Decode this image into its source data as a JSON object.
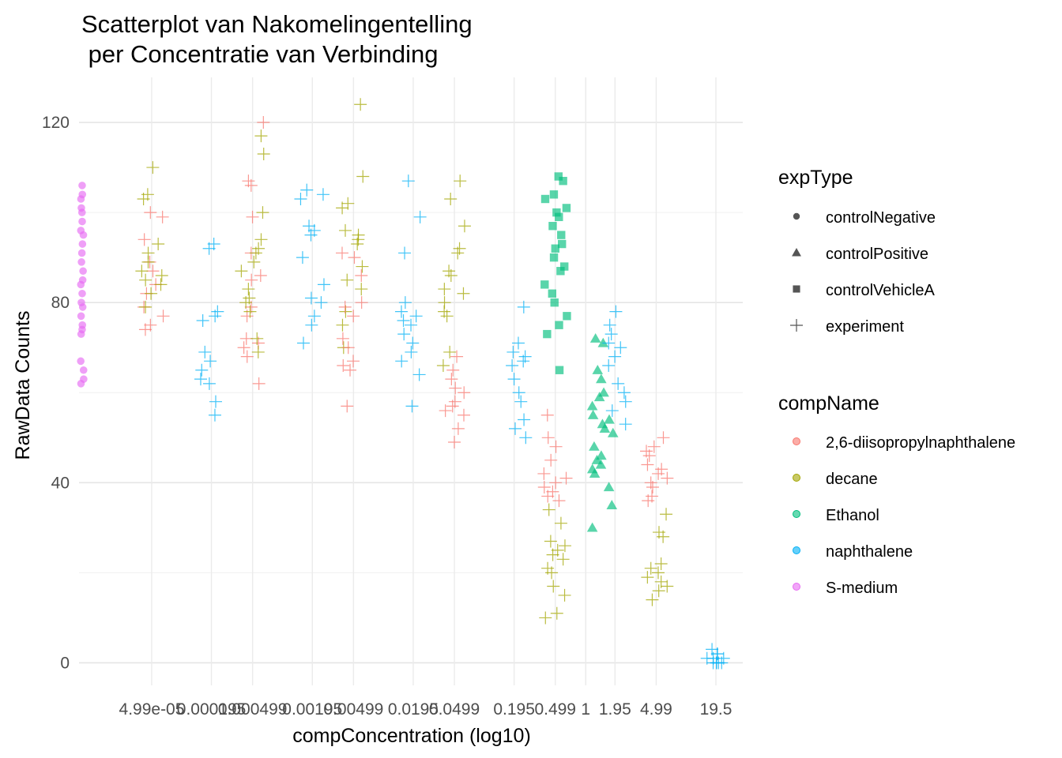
{
  "chart_data": {
    "type": "scatter",
    "title": "Scatterplot van Nakomelingentelling\n per Concentratie van Verbinding",
    "xlabel": "compConcentration (log10)",
    "ylabel": "RawData Counts",
    "x_scale": "log10",
    "xlim": [
      9.5e-06,
      36
    ],
    "ylim": [
      -5,
      130
    ],
    "y_ticks": [
      0,
      40,
      80,
      120
    ],
    "x_tick_labels": [
      {
        "value": 4.99e-05,
        "label": "4.99e-05"
      },
      {
        "value": 0.000195,
        "label": "0.000195"
      },
      {
        "value": 0.000499,
        "label": "0.000499"
      },
      {
        "value": 0.00195,
        "label": "0.00195"
      },
      {
        "value": 0.00499,
        "label": "0.00499"
      },
      {
        "value": 0.0195,
        "label": "0.0195"
      },
      {
        "value": 0.0499,
        "label": "0.0499"
      },
      {
        "value": 0.195,
        "label": "0.195"
      },
      {
        "value": 0.499,
        "label": "0.499"
      },
      {
        "value": 1,
        "label": "1"
      },
      {
        "value": 1.95,
        "label": "1.95"
      },
      {
        "value": 4.99,
        "label": "4.99"
      },
      {
        "value": 19.5,
        "label": "19.5"
      }
    ],
    "grid": true,
    "legend_placement": "right",
    "legends": [
      {
        "title": "expType",
        "entries": [
          {
            "label": "controlNegative",
            "shape": "circle"
          },
          {
            "label": "controlPositive",
            "shape": "triangle"
          },
          {
            "label": "controlVehicleA",
            "shape": "square"
          },
          {
            "label": "experiment",
            "shape": "plus"
          }
        ]
      },
      {
        "title": "compName",
        "entries": [
          {
            "label": "2,6-diisopropylnaphthalene",
            "color": "#F8766D"
          },
          {
            "label": "decane",
            "color": "#A3A500"
          },
          {
            "label": "Ethanol",
            "color": "#00BF7D"
          },
          {
            "label": "naphthalene",
            "color": "#00B0F6"
          },
          {
            "label": "S-medium",
            "color": "#E76BF3"
          }
        ]
      }
    ],
    "series": [
      {
        "compName": "S-medium",
        "expType": "controlNegative",
        "color": "#E76BF3",
        "shape": "circle",
        "x": 9.5e-06,
        "y": [
          106,
          104,
          103,
          101,
          100,
          98,
          96,
          95,
          93,
          91,
          89,
          87,
          85,
          84,
          82,
          80,
          79,
          77,
          75,
          74,
          73,
          67,
          65,
          63,
          62
        ]
      },
      {
        "compName": "2,6-diisopropylnaphthalene",
        "expType": "experiment",
        "color": "#F8766D",
        "shape": "plus",
        "x": 4.99e-05,
        "y": [
          100,
          99,
          94,
          89,
          87,
          84,
          82,
          79,
          77,
          75,
          74
        ]
      },
      {
        "compName": "decane",
        "expType": "experiment",
        "color": "#A3A500",
        "shape": "plus",
        "x": 4.99e-05,
        "y": [
          110,
          104,
          103,
          93,
          91,
          89,
          87,
          86,
          85,
          84,
          82,
          79
        ]
      },
      {
        "compName": "naphthalene",
        "expType": "experiment",
        "color": "#00B0F6",
        "shape": "plus",
        "x": 0.000195,
        "y": [
          93,
          92,
          78,
          77,
          76,
          69,
          67,
          65,
          63,
          62,
          58,
          55
        ]
      },
      {
        "compName": "2,6-diisopropylnaphthalene",
        "expType": "experiment",
        "color": "#F8766D",
        "shape": "plus",
        "x": 0.000499,
        "y": [
          120,
          107,
          106,
          99,
          91,
          86,
          85,
          79,
          77,
          72,
          71,
          70,
          68,
          62
        ]
      },
      {
        "compName": "decane",
        "expType": "experiment",
        "color": "#A3A500",
        "shape": "plus",
        "x": 0.000499,
        "y": [
          117,
          113,
          100,
          94,
          92,
          91,
          89,
          87,
          83,
          81,
          80,
          78,
          72,
          69
        ]
      },
      {
        "compName": "naphthalene",
        "expType": "experiment",
        "color": "#00B0F6",
        "shape": "plus",
        "x": 0.00195,
        "y": [
          105,
          104,
          103,
          97,
          96,
          95,
          90,
          84,
          81,
          80,
          77,
          75,
          71
        ]
      },
      {
        "compName": "decane",
        "expType": "experiment",
        "color": "#A3A500",
        "shape": "plus",
        "x": 0.00499,
        "y": [
          124,
          108,
          102,
          101,
          96,
          95,
          94,
          93,
          88,
          85,
          83,
          78,
          75,
          70
        ]
      },
      {
        "compName": "2,6-diisopropylnaphthalene",
        "expType": "experiment",
        "color": "#F8766D",
        "shape": "plus",
        "x": 0.00499,
        "y": [
          91,
          90,
          86,
          80,
          79,
          77,
          72,
          70,
          67,
          66,
          65,
          57
        ]
      },
      {
        "compName": "naphthalene",
        "expType": "experiment",
        "color": "#00B0F6",
        "shape": "plus",
        "x": 0.0195,
        "y": [
          107,
          99,
          91,
          80,
          78,
          77,
          76,
          75,
          73,
          71,
          69,
          67,
          64,
          57
        ]
      },
      {
        "compName": "decane",
        "expType": "experiment",
        "color": "#A3A500",
        "shape": "plus",
        "x": 0.0499,
        "y": [
          107,
          103,
          97,
          92,
          91,
          87,
          86,
          83,
          82,
          80,
          78,
          77,
          69,
          66
        ]
      },
      {
        "compName": "2,6-diisopropylnaphthalene",
        "expType": "experiment",
        "color": "#F8766D",
        "shape": "plus",
        "x": 0.0499,
        "y": [
          68,
          65,
          63,
          61,
          60,
          58,
          57,
          56,
          55,
          52,
          49
        ]
      },
      {
        "compName": "naphthalene",
        "expType": "experiment",
        "color": "#00B0F6",
        "shape": "plus",
        "x": 0.195,
        "y": [
          79,
          71,
          69,
          68,
          67,
          66,
          63,
          60,
          58,
          54,
          52,
          50
        ]
      },
      {
        "compName": "Ethanol",
        "expType": "controlVehicleA",
        "color": "#00BF7D",
        "shape": "square",
        "x": 0.499,
        "y": [
          108,
          107,
          104,
          103,
          101,
          100,
          99,
          97,
          95,
          93,
          92,
          90,
          88,
          87,
          84,
          82,
          80,
          77,
          75,
          73,
          65
        ]
      },
      {
        "compName": "2,6-diisopropylnaphthalene",
        "expType": "experiment",
        "color": "#F8766D",
        "shape": "plus",
        "x": 0.499,
        "y": [
          55,
          50,
          48,
          45,
          42,
          41,
          40,
          39,
          38,
          37,
          36
        ]
      },
      {
        "compName": "decane",
        "expType": "experiment",
        "color": "#A3A500",
        "shape": "plus",
        "x": 0.499,
        "y": [
          34,
          31,
          27,
          26,
          25,
          24,
          23,
          21,
          20,
          17,
          15,
          11,
          10
        ]
      },
      {
        "compName": "Ethanol",
        "expType": "controlPositive",
        "color": "#00BF7D",
        "shape": "triangle",
        "x": 1.5,
        "y": [
          72,
          71,
          65,
          63,
          60,
          59,
          57,
          55,
          54,
          53,
          52,
          51,
          48,
          46,
          45,
          44,
          43,
          42,
          39,
          35,
          30
        ]
      },
      {
        "compName": "naphthalene",
        "expType": "experiment",
        "color": "#00B0F6",
        "shape": "plus",
        "x": 1.95,
        "y": [
          78,
          75,
          73,
          71,
          70,
          68,
          66,
          62,
          60,
          58,
          56,
          53
        ]
      },
      {
        "compName": "2,6-diisopropylnaphthalene",
        "expType": "experiment",
        "color": "#F8766D",
        "shape": "plus",
        "x": 4.99,
        "y": [
          50,
          48,
          47,
          46,
          44,
          43,
          42,
          41,
          40,
          39,
          37,
          36
        ]
      },
      {
        "compName": "decane",
        "expType": "experiment",
        "color": "#A3A500",
        "shape": "plus",
        "x": 4.99,
        "y": [
          33,
          29,
          28,
          22,
          21,
          20,
          19,
          18,
          17,
          16,
          14
        ]
      },
      {
        "compName": "naphthalene",
        "expType": "experiment",
        "color": "#00B0F6",
        "shape": "plus",
        "x": 19.5,
        "y": [
          3,
          2,
          2,
          1,
          1,
          1,
          0,
          0,
          0,
          0,
          0
        ]
      }
    ]
  }
}
